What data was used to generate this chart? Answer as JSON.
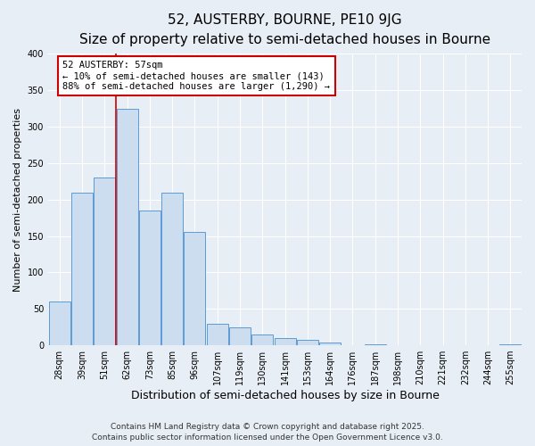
{
  "title": "52, AUSTERBY, BOURNE, PE10 9JG",
  "subtitle": "Size of property relative to semi-detached houses in Bourne",
  "xlabel": "Distribution of semi-detached houses by size in Bourne",
  "ylabel": "Number of semi-detached properties",
  "bar_labels": [
    "28sqm",
    "39sqm",
    "51sqm",
    "62sqm",
    "73sqm",
    "85sqm",
    "96sqm",
    "107sqm",
    "119sqm",
    "130sqm",
    "141sqm",
    "153sqm",
    "164sqm",
    "176sqm",
    "187sqm",
    "198sqm",
    "210sqm",
    "221sqm",
    "232sqm",
    "244sqm",
    "255sqm"
  ],
  "bar_values": [
    60,
    210,
    230,
    325,
    185,
    210,
    155,
    30,
    25,
    15,
    10,
    8,
    4,
    0,
    1,
    0,
    0,
    0,
    0,
    0,
    1
  ],
  "bar_color": "#ccddf0",
  "bar_edge_color": "#5b9bd5",
  "vline_x_index": 2.5,
  "vline_color": "#cc0000",
  "annotation_title": "52 AUSTERBY: 57sqm",
  "annotation_line1": "← 10% of semi-detached houses are smaller (143)",
  "annotation_line2": "88% of semi-detached houses are larger (1,290) →",
  "annotation_box_facecolor": "#ffffff",
  "annotation_box_edgecolor": "#cc0000",
  "ylim": [
    0,
    400
  ],
  "yticks": [
    0,
    50,
    100,
    150,
    200,
    250,
    300,
    350,
    400
  ],
  "footer1": "Contains HM Land Registry data © Crown copyright and database right 2025.",
  "footer2": "Contains public sector information licensed under the Open Government Licence v3.0.",
  "background_color": "#e8eef5",
  "plot_bg_color": "#e8eef5",
  "grid_color": "#ffffff",
  "title_fontsize": 11,
  "subtitle_fontsize": 9,
  "ylabel_fontsize": 8,
  "xlabel_fontsize": 9,
  "tick_fontsize": 7,
  "annotation_fontsize": 7.5,
  "footer_fontsize": 6.5
}
